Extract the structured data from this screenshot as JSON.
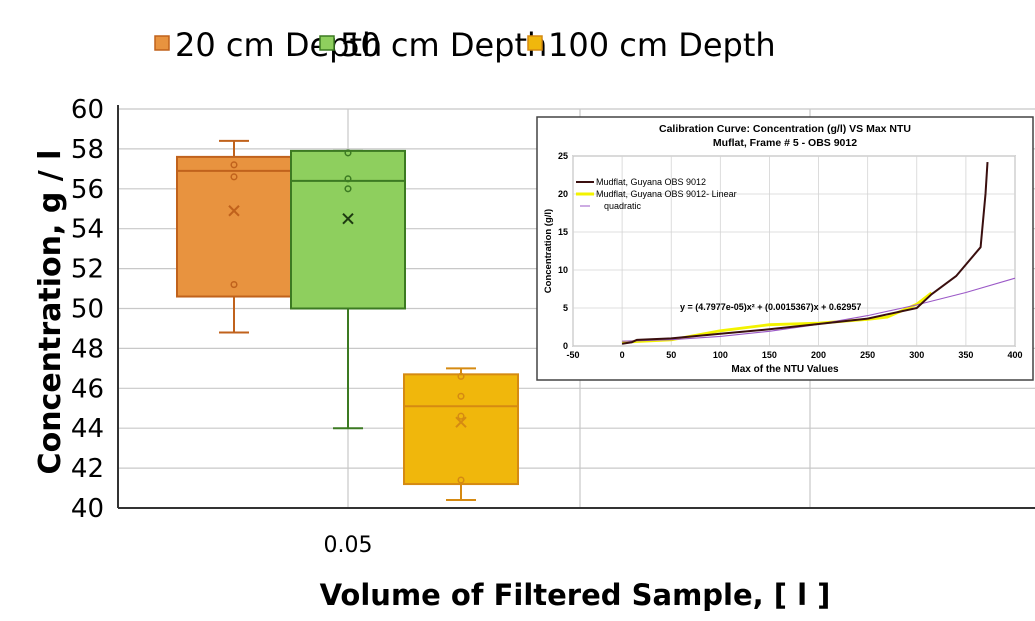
{
  "chart_data": [
    {
      "type": "box",
      "title": "",
      "xlabel": "Volume of  Filtered Sample, [ l ]",
      "ylabel": "Concentration, g  / l",
      "categories": [
        "0.05"
      ],
      "ylim": [
        40,
        60
      ],
      "yticks": [
        40,
        42,
        44,
        46,
        48,
        50,
        52,
        54,
        56,
        58,
        60
      ],
      "grid": true,
      "legend_position": "top",
      "series": [
        {
          "name": "20 cm Depth",
          "color": "#e8933f",
          "stroke": "#c0621c",
          "whisker_low": 48.8,
          "q1": 50.6,
          "median": 56.9,
          "q3": 57.6,
          "whisker_high": 58.4,
          "mean": 54.9,
          "points": [
            51.2,
            56.6,
            57.2
          ]
        },
        {
          "name": "50 cm Depth",
          "color": "#8ecf5e",
          "stroke": "#3c7a22",
          "whisker_low": 44.0,
          "q1": 50.0,
          "median": 56.4,
          "q3": 57.9,
          "whisker_high": 57.9,
          "mean": 54.5,
          "points": [
            56.0,
            56.5,
            57.8
          ]
        },
        {
          "name": "100 cm Depth",
          "color": "#f0b70c",
          "stroke": "#d58a12",
          "whisker_low": 40.4,
          "q1": 41.2,
          "median": 45.1,
          "q3": 46.7,
          "whisker_high": 47.0,
          "mean": 44.3,
          "points": [
            41.4,
            44.6,
            45.6,
            46.6
          ]
        }
      ]
    },
    {
      "type": "line",
      "title": "Calibration Curve: Concentration (g/l) VS Max NTU",
      "subtitle": "Muflat, Frame # 5 - OBS 9012",
      "xlabel": "Max of the NTU Values",
      "ylabel": "Concentration (g/l)",
      "xlim": [
        -50,
        400
      ],
      "ylim": [
        0,
        25
      ],
      "xticks": [
        -50,
        0,
        50,
        100,
        150,
        200,
        250,
        300,
        350,
        400
      ],
      "yticks": [
        0,
        5,
        10,
        15,
        20,
        25
      ],
      "grid": true,
      "legend_position": "top-left",
      "annotation": "y = (4.7977e-05)x² + (0.0015367)x + 0.62957",
      "series": [
        {
          "name": "Mudflat, Guyana OBS 9012",
          "color": "#3a0f0f",
          "x": [
            0,
            10,
            15,
            50,
            100,
            150,
            200,
            250,
            300,
            315,
            340,
            365,
            370,
            372
          ],
          "y": [
            0.3,
            0.5,
            0.8,
            1.0,
            1.6,
            2.2,
            2.9,
            3.6,
            5.0,
            6.8,
            9.2,
            13.0,
            20.0,
            24.2
          ]
        },
        {
          "name": "Mudflat, Guyana OBS 9012- Linear",
          "color": "#f3f300",
          "x": [
            0,
            50,
            100,
            150,
            200,
            250,
            270,
            300,
            315
          ],
          "y": [
            0.5,
            0.8,
            2.0,
            2.8,
            3.0,
            3.5,
            3.8,
            5.5,
            7.0
          ]
        },
        {
          "name": "quadratic",
          "color": "#9b59c7",
          "x": [
            0,
            50,
            100,
            150,
            200,
            250,
            300,
            350,
            400
          ],
          "y": [
            0.63,
            0.83,
            1.26,
            1.94,
            2.86,
            4.0,
            5.41,
            7.04,
            8.92
          ]
        }
      ]
    }
  ]
}
